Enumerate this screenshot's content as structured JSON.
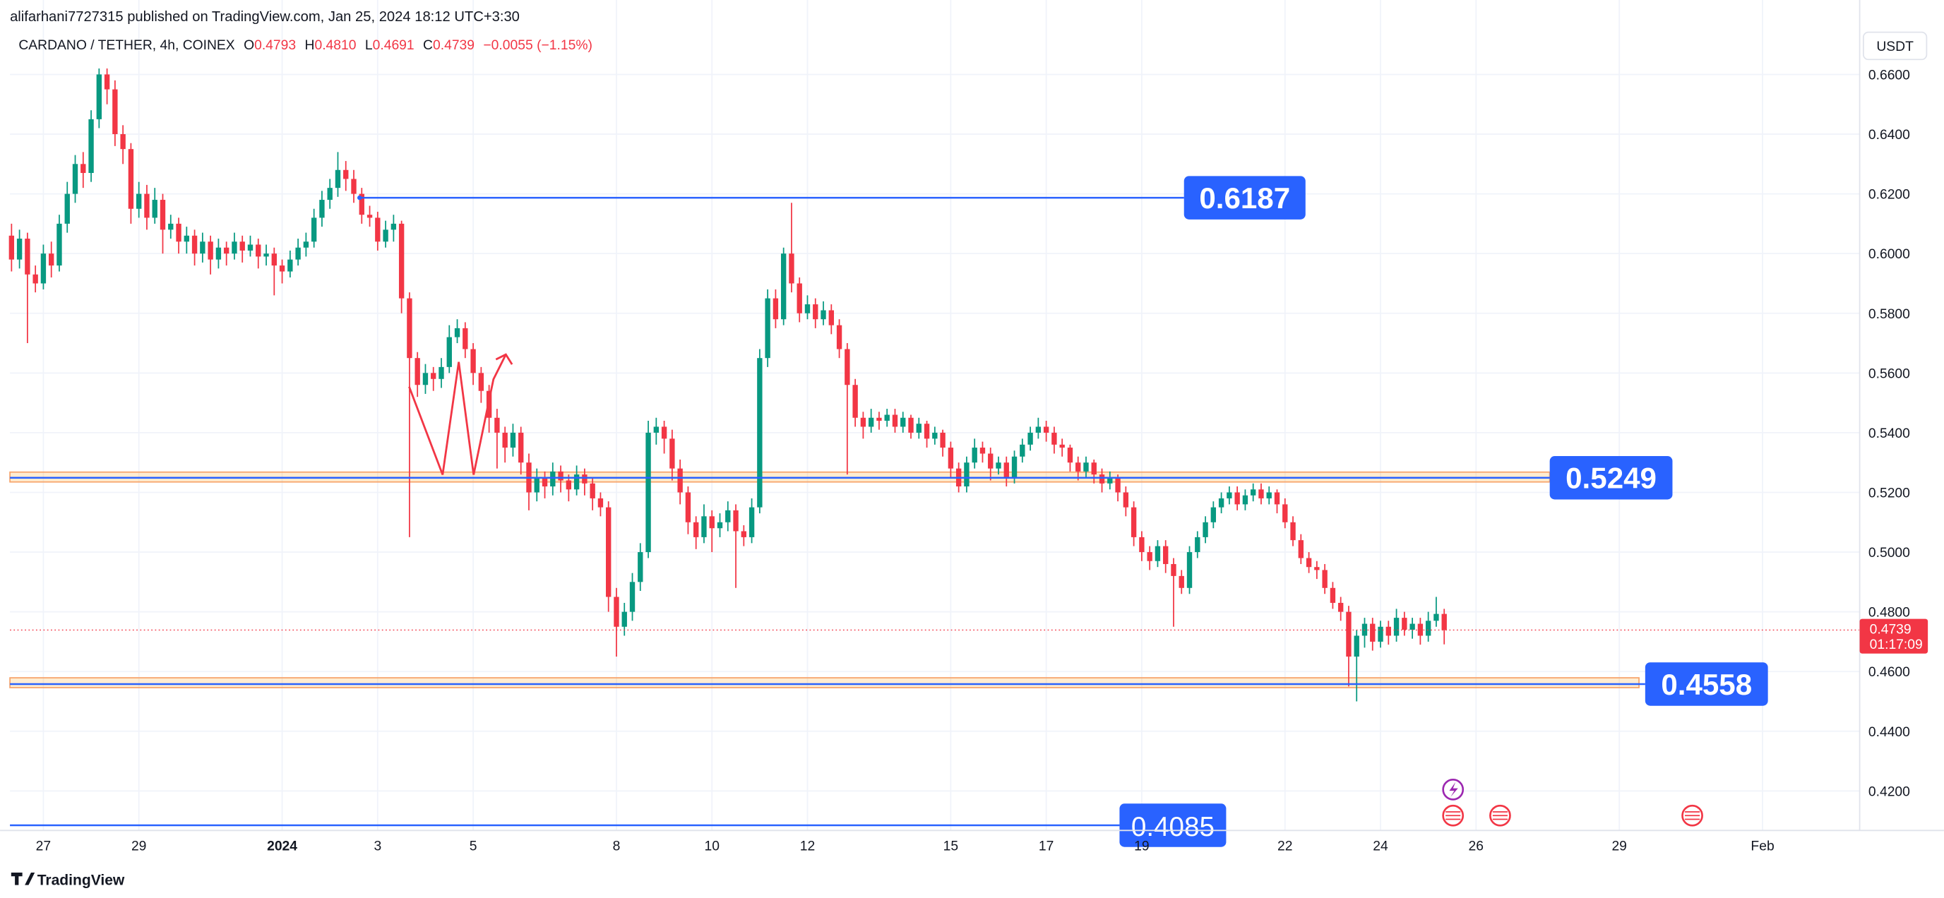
{
  "header": {
    "publisher": "alifarhani7727315 published on TradingView.com, Jan 25, 2024 18:12 UTC+3:30"
  },
  "footer": {
    "brand": "TradingView"
  },
  "chart_data": {
    "type": "candlestick",
    "legend": {
      "symbol": "CARDANO / TETHER, 4h, COINEX",
      "open_key": "O",
      "open": "0.4793",
      "high_key": "H",
      "high": "0.4810",
      "low_key": "L",
      "low": "0.4691",
      "close_key": "C",
      "close": "0.4739",
      "change": "−0.0055 (−1.15%)"
    },
    "currency": "USDT",
    "up_color": "#089981",
    "down_color": "#f23645",
    "grid": true,
    "xlim": [
      -0.2,
      232.2
    ],
    "xticks": [
      {
        "value": 4,
        "label": "27"
      },
      {
        "value": 16,
        "label": "29"
      },
      {
        "value": 34,
        "label": "2024"
      },
      {
        "value": 46,
        "label": "3"
      },
      {
        "value": 58,
        "label": "5"
      },
      {
        "value": 76,
        "label": "8"
      },
      {
        "value": 88,
        "label": "10"
      },
      {
        "value": 100,
        "label": "12"
      },
      {
        "value": 118,
        "label": "15"
      },
      {
        "value": 130,
        "label": "17"
      },
      {
        "value": 142,
        "label": "19"
      },
      {
        "value": 160,
        "label": "22"
      },
      {
        "value": 172,
        "label": "24"
      },
      {
        "value": 184,
        "label": "26"
      },
      {
        "value": 202,
        "label": "29"
      },
      {
        "value": 220,
        "label": "Feb"
      }
    ],
    "ylim": [
      0.4076,
      0.6758
    ],
    "yticks": [
      {
        "value": 0.42,
        "label": "0.4200"
      },
      {
        "value": 0.44,
        "label": "0.4400"
      },
      {
        "value": 0.46,
        "label": "0.4600"
      },
      {
        "value": 0.48,
        "label": "0.4800"
      },
      {
        "value": 0.5,
        "label": "0.5000"
      },
      {
        "value": 0.52,
        "label": "0.5200"
      },
      {
        "value": 0.54,
        "label": "0.5400"
      },
      {
        "value": 0.56,
        "label": "0.5600"
      },
      {
        "value": 0.58,
        "label": "0.5800"
      },
      {
        "value": 0.6,
        "label": "0.6000"
      },
      {
        "value": 0.62,
        "label": "0.6200"
      },
      {
        "value": 0.64,
        "label": "0.6400"
      },
      {
        "value": 0.66,
        "label": "0.6600"
      }
    ],
    "last_price": 0.4739,
    "countdown": "01:17:09",
    "levels": [
      0.6187,
      0.5249,
      0.4558,
      0.4085
    ],
    "zones": [
      {
        "low": 0.5235,
        "high": 0.5268
      },
      {
        "low": 0.4546,
        "high": 0.4579
      }
    ],
    "candles": [
      [
        0.606,
        0.61,
        0.594,
        0.598
      ],
      [
        0.598,
        0.608,
        0.595,
        0.605
      ],
      [
        0.605,
        0.607,
        0.57,
        0.593
      ],
      [
        0.593,
        0.596,
        0.587,
        0.59
      ],
      [
        0.59,
        0.603,
        0.588,
        0.6
      ],
      [
        0.6,
        0.604,
        0.592,
        0.596
      ],
      [
        0.596,
        0.613,
        0.594,
        0.61
      ],
      [
        0.61,
        0.624,
        0.607,
        0.62
      ],
      [
        0.62,
        0.633,
        0.617,
        0.63
      ],
      [
        0.63,
        0.634,
        0.622,
        0.627
      ],
      [
        0.627,
        0.648,
        0.624,
        0.645
      ],
      [
        0.645,
        0.662,
        0.642,
        0.66
      ],
      [
        0.66,
        0.662,
        0.65,
        0.655
      ],
      [
        0.655,
        0.658,
        0.636,
        0.64
      ],
      [
        0.64,
        0.643,
        0.63,
        0.635
      ],
      [
        0.635,
        0.637,
        0.61,
        0.615
      ],
      [
        0.615,
        0.624,
        0.612,
        0.62
      ],
      [
        0.62,
        0.623,
        0.608,
        0.612
      ],
      [
        0.612,
        0.622,
        0.61,
        0.618
      ],
      [
        0.618,
        0.62,
        0.6,
        0.608
      ],
      [
        0.608,
        0.613,
        0.605,
        0.61
      ],
      [
        0.61,
        0.612,
        0.6,
        0.604
      ],
      [
        0.604,
        0.609,
        0.6,
        0.606
      ],
      [
        0.606,
        0.608,
        0.596,
        0.6
      ],
      [
        0.6,
        0.607,
        0.597,
        0.604
      ],
      [
        0.604,
        0.606,
        0.593,
        0.598
      ],
      [
        0.598,
        0.605,
        0.595,
        0.602
      ],
      [
        0.602,
        0.604,
        0.596,
        0.6
      ],
      [
        0.6,
        0.607,
        0.598,
        0.604
      ],
      [
        0.604,
        0.606,
        0.597,
        0.601
      ],
      [
        0.601,
        0.606,
        0.599,
        0.603
      ],
      [
        0.603,
        0.605,
        0.595,
        0.599
      ],
      [
        0.599,
        0.603,
        0.596,
        0.6
      ],
      [
        0.6,
        0.602,
        0.586,
        0.596
      ],
      [
        0.596,
        0.598,
        0.59,
        0.594
      ],
      [
        0.594,
        0.601,
        0.592,
        0.598
      ],
      [
        0.598,
        0.605,
        0.596,
        0.602
      ],
      [
        0.602,
        0.607,
        0.599,
        0.604
      ],
      [
        0.604,
        0.615,
        0.602,
        0.612
      ],
      [
        0.612,
        0.621,
        0.609,
        0.618
      ],
      [
        0.618,
        0.625,
        0.615,
        0.622
      ],
      [
        0.622,
        0.634,
        0.619,
        0.628
      ],
      [
        0.628,
        0.631,
        0.621,
        0.625
      ],
      [
        0.625,
        0.628,
        0.617,
        0.62
      ],
      [
        0.62,
        0.622,
        0.61,
        0.613
      ],
      [
        0.613,
        0.616,
        0.609,
        0.612
      ],
      [
        0.612,
        0.614,
        0.601,
        0.604
      ],
      [
        0.604,
        0.611,
        0.602,
        0.608
      ],
      [
        0.608,
        0.613,
        0.604,
        0.61
      ],
      [
        0.61,
        0.611,
        0.58,
        0.585
      ],
      [
        0.585,
        0.587,
        0.505,
        0.565
      ],
      [
        0.565,
        0.567,
        0.552,
        0.556
      ],
      [
        0.556,
        0.563,
        0.553,
        0.56
      ],
      [
        0.56,
        0.562,
        0.554,
        0.558
      ],
      [
        0.558,
        0.565,
        0.555,
        0.562
      ],
      [
        0.562,
        0.576,
        0.56,
        0.572
      ],
      [
        0.572,
        0.578,
        0.57,
        0.575
      ],
      [
        0.575,
        0.577,
        0.565,
        0.568
      ],
      [
        0.568,
        0.57,
        0.556,
        0.56
      ],
      [
        0.56,
        0.562,
        0.55,
        0.554
      ],
      [
        0.554,
        0.556,
        0.54,
        0.545
      ],
      [
        0.545,
        0.548,
        0.528,
        0.54
      ],
      [
        0.54,
        0.542,
        0.53,
        0.535
      ],
      [
        0.535,
        0.543,
        0.532,
        0.54
      ],
      [
        0.54,
        0.542,
        0.526,
        0.53
      ],
      [
        0.53,
        0.533,
        0.514,
        0.52
      ],
      [
        0.52,
        0.528,
        0.517,
        0.525
      ],
      [
        0.525,
        0.527,
        0.518,
        0.522
      ],
      [
        0.522,
        0.53,
        0.519,
        0.527
      ],
      [
        0.527,
        0.529,
        0.52,
        0.524
      ],
      [
        0.524,
        0.526,
        0.517,
        0.521
      ],
      [
        0.521,
        0.529,
        0.519,
        0.526
      ],
      [
        0.526,
        0.528,
        0.519,
        0.523
      ],
      [
        0.523,
        0.525,
        0.514,
        0.518
      ],
      [
        0.518,
        0.52,
        0.512,
        0.515
      ],
      [
        0.515,
        0.517,
        0.48,
        0.485
      ],
      [
        0.485,
        0.488,
        0.465,
        0.475
      ],
      [
        0.475,
        0.483,
        0.472,
        0.48
      ],
      [
        0.48,
        0.493,
        0.477,
        0.49
      ],
      [
        0.49,
        0.503,
        0.487,
        0.5
      ],
      [
        0.5,
        0.544,
        0.498,
        0.54
      ],
      [
        0.54,
        0.545,
        0.536,
        0.542
      ],
      [
        0.542,
        0.544,
        0.533,
        0.538
      ],
      [
        0.538,
        0.541,
        0.524,
        0.528
      ],
      [
        0.528,
        0.531,
        0.516,
        0.52
      ],
      [
        0.52,
        0.522,
        0.506,
        0.51
      ],
      [
        0.51,
        0.512,
        0.501,
        0.505
      ],
      [
        0.505,
        0.516,
        0.503,
        0.512
      ],
      [
        0.512,
        0.514,
        0.5,
        0.508
      ],
      [
        0.508,
        0.513,
        0.505,
        0.51
      ],
      [
        0.51,
        0.517,
        0.507,
        0.514
      ],
      [
        0.514,
        0.516,
        0.488,
        0.507
      ],
      [
        0.507,
        0.509,
        0.502,
        0.505
      ],
      [
        0.505,
        0.518,
        0.503,
        0.515
      ],
      [
        0.515,
        0.568,
        0.513,
        0.565
      ],
      [
        0.565,
        0.588,
        0.562,
        0.585
      ],
      [
        0.585,
        0.588,
        0.575,
        0.578
      ],
      [
        0.578,
        0.602,
        0.576,
        0.6
      ],
      [
        0.6,
        0.617,
        0.587,
        0.59
      ],
      [
        0.59,
        0.592,
        0.577,
        0.58
      ],
      [
        0.58,
        0.586,
        0.578,
        0.583
      ],
      [
        0.583,
        0.585,
        0.575,
        0.578
      ],
      [
        0.578,
        0.584,
        0.576,
        0.581
      ],
      [
        0.581,
        0.583,
        0.573,
        0.576
      ],
      [
        0.576,
        0.578,
        0.565,
        0.568
      ],
      [
        0.568,
        0.57,
        0.526,
        0.556
      ],
      [
        0.556,
        0.558,
        0.542,
        0.545
      ],
      [
        0.545,
        0.547,
        0.538,
        0.542
      ],
      [
        0.542,
        0.548,
        0.54,
        0.545
      ],
      [
        0.545,
        0.547,
        0.541,
        0.544
      ],
      [
        0.544,
        0.548,
        0.542,
        0.546
      ],
      [
        0.546,
        0.548,
        0.54,
        0.542
      ],
      [
        0.542,
        0.547,
        0.54,
        0.545
      ],
      [
        0.545,
        0.546,
        0.538,
        0.54
      ],
      [
        0.54,
        0.545,
        0.538,
        0.543
      ],
      [
        0.543,
        0.544,
        0.535,
        0.538
      ],
      [
        0.538,
        0.542,
        0.536,
        0.54
      ],
      [
        0.54,
        0.541,
        0.532,
        0.535
      ],
      [
        0.535,
        0.537,
        0.525,
        0.528
      ],
      [
        0.528,
        0.53,
        0.52,
        0.522
      ],
      [
        0.522,
        0.532,
        0.52,
        0.53
      ],
      [
        0.53,
        0.538,
        0.528,
        0.535
      ],
      [
        0.535,
        0.537,
        0.53,
        0.533
      ],
      [
        0.533,
        0.535,
        0.524,
        0.528
      ],
      [
        0.528,
        0.532,
        0.526,
        0.53
      ],
      [
        0.53,
        0.532,
        0.522,
        0.525
      ],
      [
        0.525,
        0.534,
        0.523,
        0.532
      ],
      [
        0.532,
        0.538,
        0.53,
        0.536
      ],
      [
        0.536,
        0.542,
        0.534,
        0.54
      ],
      [
        0.54,
        0.545,
        0.538,
        0.542
      ],
      [
        0.542,
        0.544,
        0.537,
        0.54
      ],
      [
        0.54,
        0.542,
        0.533,
        0.536
      ],
      [
        0.536,
        0.538,
        0.532,
        0.535
      ],
      [
        0.535,
        0.536,
        0.527,
        0.53
      ],
      [
        0.53,
        0.532,
        0.524,
        0.527
      ],
      [
        0.527,
        0.532,
        0.525,
        0.53
      ],
      [
        0.53,
        0.531,
        0.523,
        0.526
      ],
      [
        0.526,
        0.528,
        0.52,
        0.523
      ],
      [
        0.523,
        0.527,
        0.521,
        0.525
      ],
      [
        0.525,
        0.526,
        0.517,
        0.52
      ],
      [
        0.52,
        0.522,
        0.512,
        0.515
      ],
      [
        0.515,
        0.517,
        0.502,
        0.505
      ],
      [
        0.505,
        0.507,
        0.497,
        0.5
      ],
      [
        0.5,
        0.502,
        0.494,
        0.497
      ],
      [
        0.497,
        0.504,
        0.495,
        0.502
      ],
      [
        0.502,
        0.504,
        0.493,
        0.496
      ],
      [
        0.496,
        0.498,
        0.475,
        0.492
      ],
      [
        0.492,
        0.494,
        0.486,
        0.488
      ],
      [
        0.488,
        0.502,
        0.486,
        0.5
      ],
      [
        0.5,
        0.507,
        0.498,
        0.505
      ],
      [
        0.505,
        0.512,
        0.503,
        0.51
      ],
      [
        0.51,
        0.517,
        0.508,
        0.515
      ],
      [
        0.515,
        0.52,
        0.513,
        0.518
      ],
      [
        0.518,
        0.522,
        0.516,
        0.52
      ],
      [
        0.52,
        0.522,
        0.514,
        0.516
      ],
      [
        0.516,
        0.521,
        0.514,
        0.519
      ],
      [
        0.519,
        0.523,
        0.517,
        0.521
      ],
      [
        0.521,
        0.523,
        0.516,
        0.518
      ],
      [
        0.518,
        0.522,
        0.516,
        0.52
      ],
      [
        0.52,
        0.521,
        0.513,
        0.516
      ],
      [
        0.516,
        0.518,
        0.508,
        0.51
      ],
      [
        0.51,
        0.512,
        0.502,
        0.504
      ],
      [
        0.504,
        0.506,
        0.496,
        0.498
      ],
      [
        0.498,
        0.5,
        0.493,
        0.495
      ],
      [
        0.495,
        0.497,
        0.491,
        0.494
      ],
      [
        0.494,
        0.496,
        0.486,
        0.488
      ],
      [
        0.488,
        0.49,
        0.481,
        0.483
      ],
      [
        0.483,
        0.485,
        0.477,
        0.48
      ],
      [
        0.48,
        0.482,
        0.455,
        0.465
      ],
      [
        0.465,
        0.474,
        0.45,
        0.472
      ],
      [
        0.472,
        0.478,
        0.468,
        0.476
      ],
      [
        0.476,
        0.478,
        0.467,
        0.47
      ],
      [
        0.47,
        0.477,
        0.468,
        0.475
      ],
      [
        0.475,
        0.477,
        0.469,
        0.472
      ],
      [
        0.472,
        0.481,
        0.47,
        0.478
      ],
      [
        0.478,
        0.48,
        0.472,
        0.474
      ],
      [
        0.474,
        0.478,
        0.471,
        0.476
      ],
      [
        0.476,
        0.478,
        0.469,
        0.472
      ],
      [
        0.472,
        0.48,
        0.47,
        0.477
      ],
      [
        0.477,
        0.485,
        0.475,
        0.4793
      ],
      [
        0.4793,
        0.481,
        0.4691,
        0.4739
      ]
    ]
  }
}
